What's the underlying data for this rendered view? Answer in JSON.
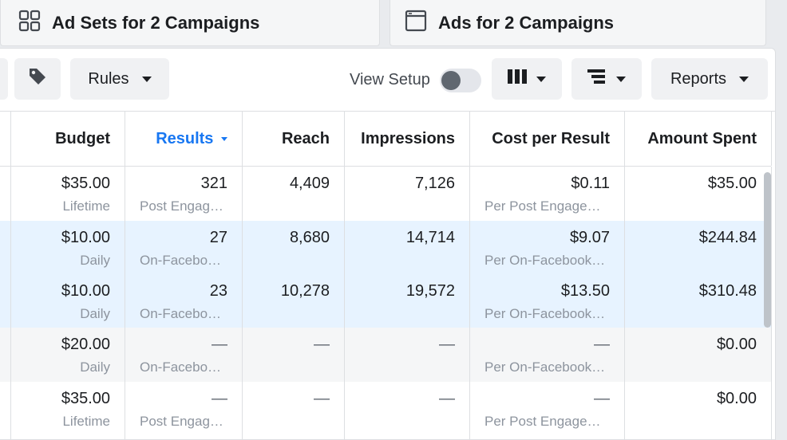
{
  "tabs": [
    {
      "label": "Ad Sets for 2 Campaigns",
      "icon": "grid-icon"
    },
    {
      "label": "Ads for 2 Campaigns",
      "icon": "window-icon"
    }
  ],
  "toolbar": {
    "rules_label": "Rules",
    "view_setup_label": "View Setup",
    "view_setup_on": false,
    "reports_label": "Reports",
    "icons": [
      "tag-icon",
      "columns-icon",
      "breakdown-icon"
    ]
  },
  "columns": {
    "budget": "Budget",
    "results": "Results",
    "reach": "Reach",
    "impressions": "Impressions",
    "cost_per_result": "Cost per Result",
    "amount_spent": "Amount Spent"
  },
  "colors": {
    "selected_row": "#e7f3ff",
    "accent": "#1877f2",
    "muted_row": "#f5f6f7"
  },
  "rows": [
    {
      "budget": "$35.00",
      "budget_type": "Lifetime",
      "results": "321",
      "result_type": "Post Engag…",
      "reach": "4,409",
      "impressions": "7,126",
      "cpr": "$0.11",
      "cpr_type": "Per Post Engage…",
      "spent": "$35.00",
      "selected": false
    },
    {
      "budget": "$10.00",
      "budget_type": "Daily",
      "results": "27",
      "result_type": "On-Facebo…",
      "reach": "8,680",
      "impressions": "14,714",
      "cpr": "$9.07",
      "cpr_type": "Per On-Facebook…",
      "spent": "$244.84",
      "selected": true
    },
    {
      "budget": "$10.00",
      "budget_type": "Daily",
      "results": "23",
      "result_type": "On-Facebo…",
      "reach": "10,278",
      "impressions": "19,572",
      "cpr": "$13.50",
      "cpr_type": "Per On-Facebook…",
      "spent": "$310.48",
      "selected": true
    },
    {
      "budget": "$20.00",
      "budget_type": "Daily",
      "results": "—",
      "result_type": "On-Facebo…",
      "reach": "—",
      "impressions": "—",
      "cpr": "—",
      "cpr_type": "Per On-Facebook…",
      "spent": "$0.00",
      "selected": false
    },
    {
      "budget": "$35.00",
      "budget_type": "Lifetime",
      "results": "—",
      "result_type": "Post Engag…",
      "reach": "—",
      "impressions": "—",
      "cpr": "—",
      "cpr_type": "Per Post Engage…",
      "spent": "$0.00",
      "selected": false
    }
  ]
}
